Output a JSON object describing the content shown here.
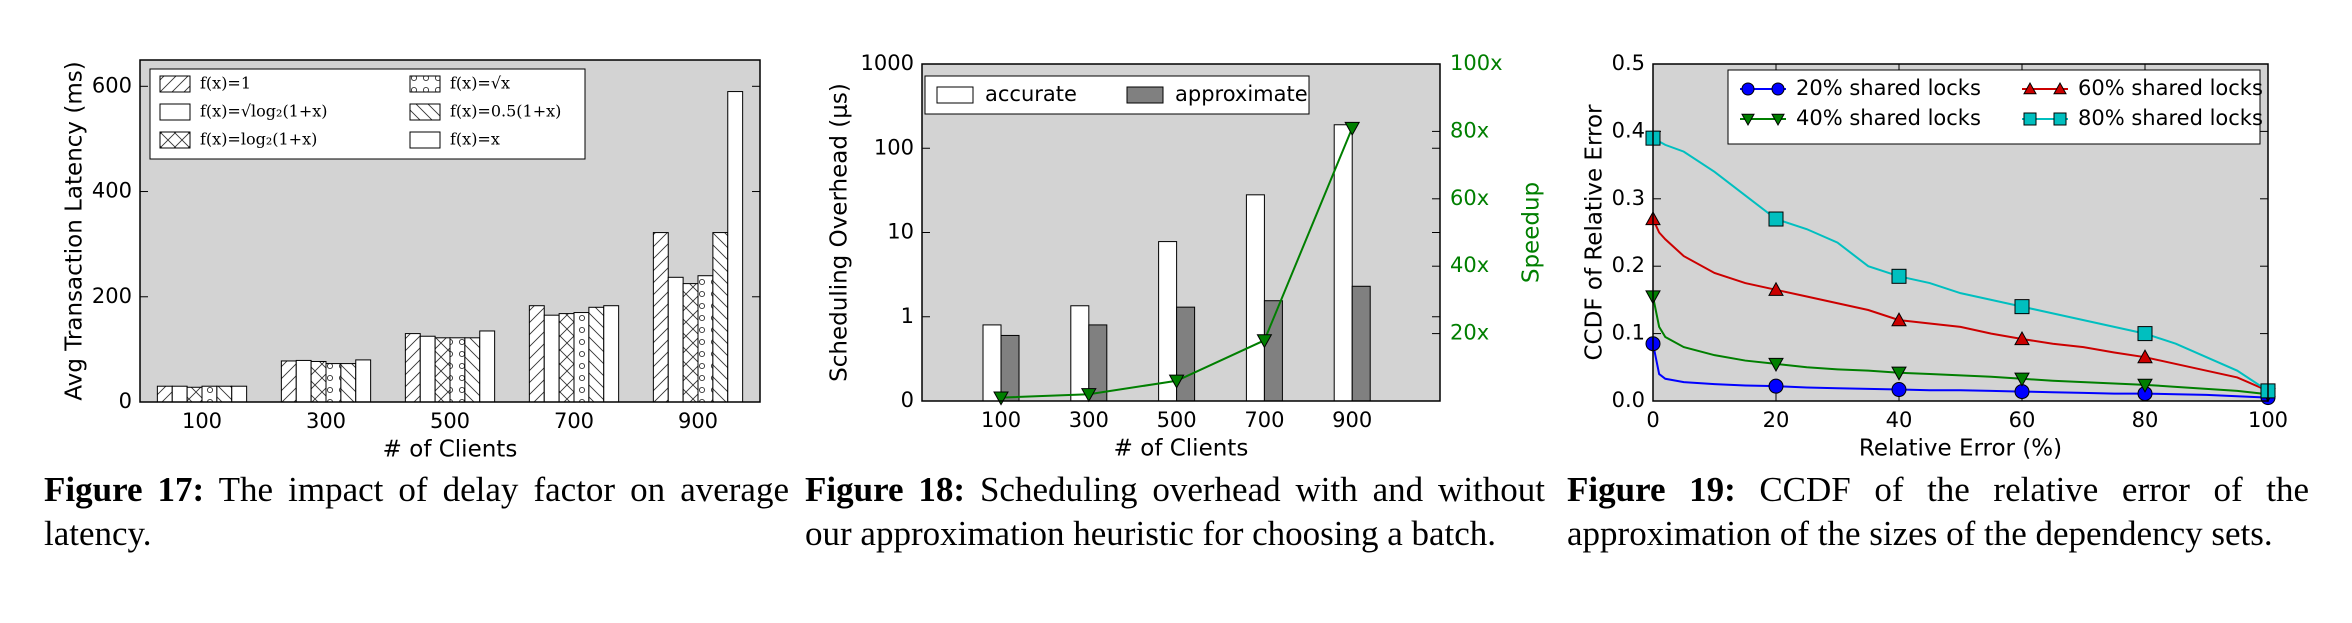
{
  "chart_data": [
    {
      "type": "bar",
      "categories": [
        "100",
        "300",
        "500",
        "700",
        "900"
      ],
      "series": [
        {
          "name": "f(x)=1",
          "hatch": "/",
          "color": "#ffffff",
          "values": [
            30,
            78,
            130,
            183,
            322
          ]
        },
        {
          "name": "f(x)=√log₂(1+x)",
          "hatch": "",
          "color": "#ffffff",
          "values": [
            30,
            79,
            125,
            165,
            237
          ]
        },
        {
          "name": "f(x)=log₂(1+x)",
          "hatch": "x",
          "color": "#ffffff",
          "values": [
            28,
            77,
            122,
            168,
            225
          ]
        },
        {
          "name": "f(x)=√x",
          "hatch": "o",
          "color": "#ffffff",
          "values": [
            30,
            73,
            122,
            170,
            240
          ]
        },
        {
          "name": "f(x)=0.5(1+x)",
          "hatch": "\\",
          "color": "#ffffff",
          "values": [
            30,
            73,
            122,
            180,
            322
          ]
        },
        {
          "name": "f(x)=x",
          "hatch": "",
          "color": "#ffffff",
          "values": [
            30,
            80,
            135,
            183,
            590
          ]
        }
      ],
      "ylim": [
        0,
        650
      ],
      "yticks": [
        0,
        200,
        400,
        600
      ],
      "xlabel": "# of Clients",
      "ylabel": "Avg Transaction Latency (ms)",
      "legend": "upper left",
      "background": "#d3d3d3",
      "caption": {
        "label": "Figure 17:",
        "text": "The impact of delay factor on average latency."
      }
    },
    {
      "type": "bar",
      "log_scale": true,
      "categories": [
        "100",
        "300",
        "500",
        "700",
        "900"
      ],
      "series": [
        {
          "name": "accurate",
          "color": "#ffffff",
          "values": [
            0.8,
            1.35,
            7.8,
            28,
            190
          ]
        },
        {
          "name": "approximate",
          "color": "#808080",
          "values": [
            0.6,
            0.8,
            1.3,
            1.55,
            2.3
          ]
        },
        {
          "type": "line",
          "axis": "y2",
          "marker": "v",
          "color": "#007f00",
          "values": [
            1,
            2,
            6,
            18,
            81
          ]
        }
      ],
      "ylim": [
        0.1,
        1000
      ],
      "yticks": [
        {
          "value": 0.1,
          "label": "0"
        },
        1,
        10,
        100,
        1000
      ],
      "y2lim": [
        0,
        100
      ],
      "y2ticks": [
        {
          "value": 20,
          "label": "20x"
        },
        {
          "value": 40,
          "label": "40x"
        },
        {
          "value": 60,
          "label": "60x"
        },
        {
          "value": 80,
          "label": "80x"
        },
        {
          "value": 100,
          "label": "100x"
        }
      ],
      "xlabel": "# of Clients",
      "ylabel": "Scheduling Overhead (μs)",
      "y2label": "Speedup",
      "legend": "upper left",
      "background": "#d3d3d3",
      "caption": {
        "label": "Figure 18:",
        "text": "Scheduling overhead with and without our approximation heuristic for choosing a batch."
      }
    },
    {
      "type": "line",
      "x": [
        0,
        1,
        2,
        5,
        10,
        15,
        20,
        25,
        30,
        35,
        40,
        45,
        50,
        55,
        60,
        65,
        70,
        75,
        80,
        85,
        90,
        95,
        100
      ],
      "marker_x": [
        0,
        20,
        40,
        60,
        80,
        100
      ],
      "series": [
        {
          "name": "20% shared locks",
          "marker": "o",
          "color": "#0000ff",
          "values": [
            0.085,
            0.04,
            0.033,
            0.028,
            0.025,
            0.023,
            0.022,
            0.02,
            0.019,
            0.018,
            0.017,
            0.016,
            0.016,
            0.015,
            0.014,
            0.013,
            0.012,
            0.011,
            0.011,
            0.01,
            0.009,
            0.007,
            0.005
          ]
        },
        {
          "name": "40% shared locks",
          "marker": "v",
          "color": "#007f00",
          "values": [
            0.155,
            0.11,
            0.095,
            0.08,
            0.068,
            0.06,
            0.055,
            0.05,
            0.047,
            0.045,
            0.042,
            0.04,
            0.038,
            0.036,
            0.033,
            0.03,
            0.028,
            0.026,
            0.024,
            0.021,
            0.018,
            0.015,
            0.01
          ]
        },
        {
          "name": "60% shared locks",
          "marker": "^",
          "color": "#cc0000",
          "values": [
            0.27,
            0.25,
            0.24,
            0.215,
            0.19,
            0.175,
            0.165,
            0.155,
            0.145,
            0.135,
            0.12,
            0.115,
            0.11,
            0.1,
            0.092,
            0.085,
            0.08,
            0.072,
            0.065,
            0.055,
            0.045,
            0.035,
            0.015
          ]
        },
        {
          "name": "80% shared locks",
          "marker": "s",
          "color": "#00bfbf",
          "values": [
            0.39,
            0.385,
            0.38,
            0.37,
            0.34,
            0.305,
            0.27,
            0.255,
            0.235,
            0.2,
            0.185,
            0.175,
            0.16,
            0.15,
            0.14,
            0.13,
            0.12,
            0.11,
            0.1,
            0.085,
            0.065,
            0.045,
            0.015
          ]
        }
      ],
      "xlim": [
        0,
        100
      ],
      "xticks": [
        0,
        20,
        40,
        60,
        80,
        100
      ],
      "ylim": [
        0,
        0.5
      ],
      "yticks": [
        {
          "value": 0,
          "label": "0.0"
        },
        0.1,
        0.2,
        0.3,
        0.4,
        0.5
      ],
      "xlabel": "Relative Error (%)",
      "ylabel": "CCDF of Relative Error",
      "legend": "upper right",
      "background": "#d3d3d3",
      "caption": {
        "label": "Figure 19:",
        "text": "CCDF of the relative error of the approximation of the sizes of the dependency sets."
      }
    }
  ]
}
